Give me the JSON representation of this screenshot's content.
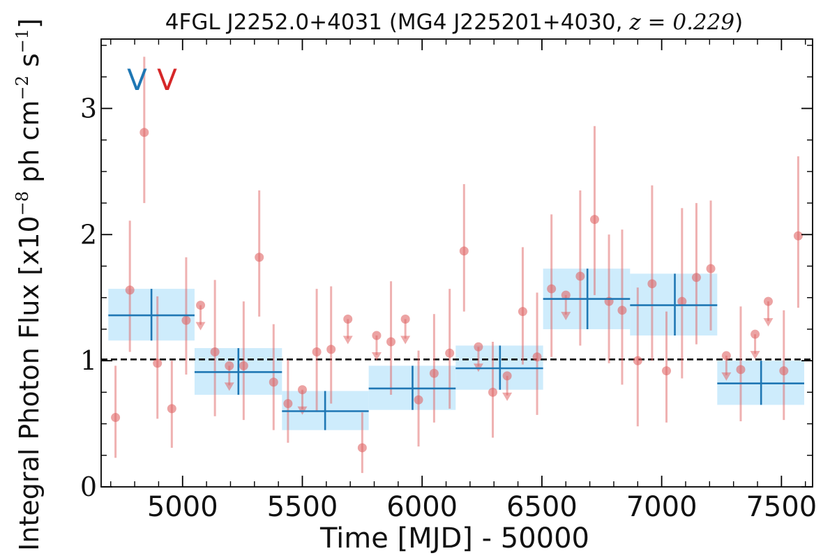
{
  "chart_data": {
    "type": "scatter",
    "title_main": "4FGL J2252.0+4031 (MG4 J225201+4030, ",
    "title_z": "z = 0.229",
    "title_end": ")",
    "xlabel": "Time [MJD] - 50000",
    "ylabel": "Integral Photon Flux [x10",
    "ylabel_exp": "−8",
    "ylabel_mid": " ph cm",
    "ylabel_exp2": "−2",
    "ylabel_end": " s",
    "ylabel_exp3": "−1",
    "ylabel_close": "]",
    "xlim": [
      4660,
      7630
    ],
    "ylim": [
      0,
      3.55
    ],
    "x_ticks": [
      5000,
      5500,
      6000,
      6500,
      7000,
      7500
    ],
    "y_ticks": [
      0,
      1,
      2,
      3
    ],
    "x_tick_labels": [
      "5000",
      "5500",
      "6000",
      "6500",
      "7000",
      "7500"
    ],
    "y_tick_labels": [
      "0",
      "1",
      "2",
      "3"
    ],
    "reference_line": 1.01,
    "markers": [
      {
        "text": "V",
        "x": 4810,
        "color": "#1f77b4"
      },
      {
        "text": "V",
        "x": 4935,
        "color": "#d62728"
      }
    ],
    "colors": {
      "monthly": "#e06666",
      "binned": "#1f77b4",
      "binned_band": "#c6e9fb"
    },
    "series": [
      {
        "kind": "binned",
        "points": [
          {
            "x": 4870,
            "x0": 4690,
            "x1": 5050,
            "y": 1.36,
            "ylo": 1.16,
            "yhi": 1.57
          },
          {
            "x": 5233,
            "x0": 5050,
            "x1": 5415,
            "y": 0.91,
            "ylo": 0.73,
            "yhi": 1.1
          },
          {
            "x": 5595,
            "x0": 5415,
            "x1": 5777,
            "y": 0.6,
            "ylo": 0.45,
            "yhi": 0.76
          },
          {
            "x": 5960,
            "x0": 5777,
            "x1": 6140,
            "y": 0.78,
            "ylo": 0.61,
            "yhi": 0.96
          },
          {
            "x": 6325,
            "x0": 6140,
            "x1": 6505,
            "y": 0.94,
            "ylo": 0.77,
            "yhi": 1.12
          },
          {
            "x": 6690,
            "x0": 6505,
            "x1": 6868,
            "y": 1.49,
            "ylo": 1.25,
            "yhi": 1.73
          },
          {
            "x": 7055,
            "x0": 6868,
            "x1": 7232,
            "y": 1.44,
            "ylo": 1.2,
            "yhi": 1.69
          },
          {
            "x": 7415,
            "x0": 7232,
            "x1": 7595,
            "y": 0.82,
            "ylo": 0.65,
            "yhi": 1.0
          }
        ]
      },
      {
        "kind": "monthly",
        "points": [
          {
            "x": 4720,
            "y": 0.55,
            "ylo": 0.23,
            "yhi": 0.96
          },
          {
            "x": 4780,
            "y": 1.56,
            "ylo": 1.07,
            "yhi": 2.11
          },
          {
            "x": 4840,
            "y": 2.81,
            "ylo": 2.25,
            "yhi": 3.41
          },
          {
            "x": 4895,
            "y": 0.98,
            "ylo": 0.54,
            "yhi": 1.51
          },
          {
            "x": 4955,
            "y": 0.62,
            "ylo": 0.31,
            "yhi": 1.0
          },
          {
            "x": 5015,
            "y": 1.32,
            "ylo": 0.89,
            "yhi": 1.82
          },
          {
            "x": 5075,
            "y": 1.44,
            "ul": true
          },
          {
            "x": 5135,
            "y": 1.07,
            "ylo": 0.56,
            "yhi": 1.64
          },
          {
            "x": 5195,
            "y": 0.96,
            "ul": true
          },
          {
            "x": 5255,
            "y": 0.96,
            "ylo": 0.53,
            "yhi": 1.47
          },
          {
            "x": 5320,
            "y": 1.82,
            "ylo": 1.35,
            "yhi": 2.35
          },
          {
            "x": 5380,
            "y": 0.83,
            "ylo": 0.45,
            "yhi": 1.29
          },
          {
            "x": 5440,
            "y": 0.66,
            "ylo": 0.35,
            "yhi": 1.01
          },
          {
            "x": 5500,
            "y": 0.77,
            "ul": true
          },
          {
            "x": 5560,
            "y": 1.07,
            "ylo": 0.6,
            "yhi": 1.57
          },
          {
            "x": 5620,
            "y": 1.09,
            "ylo": 0.66,
            "yhi": 1.59
          },
          {
            "x": 5690,
            "y": 1.33,
            "ul": true
          },
          {
            "x": 5750,
            "y": 0.31,
            "ylo": 0.11,
            "yhi": 0.59
          },
          {
            "x": 5810,
            "y": 1.2,
            "ul": true
          },
          {
            "x": 5870,
            "y": 1.15,
            "ylo": 0.73,
            "yhi": 1.63
          },
          {
            "x": 5930,
            "y": 1.33,
            "ul": true
          },
          {
            "x": 5985,
            "y": 0.69,
            "ylo": 0.32,
            "yhi": 1.08
          },
          {
            "x": 6050,
            "y": 0.9,
            "ylo": 0.51,
            "yhi": 1.37
          },
          {
            "x": 6115,
            "y": 1.06,
            "ylo": 0.62,
            "yhi": 1.57
          },
          {
            "x": 6175,
            "y": 1.87,
            "ylo": 1.39,
            "yhi": 2.4
          },
          {
            "x": 6235,
            "y": 1.11,
            "ul": true
          },
          {
            "x": 6295,
            "y": 0.75,
            "ylo": 0.39,
            "yhi": 1.15
          },
          {
            "x": 6355,
            "y": 0.88,
            "ul": true
          },
          {
            "x": 6420,
            "y": 1.39,
            "ylo": 0.97,
            "yhi": 1.9
          },
          {
            "x": 6480,
            "y": 1.03,
            "ylo": 0.57,
            "yhi": 1.54
          },
          {
            "x": 6540,
            "y": 1.57,
            "ylo": 1.03,
            "yhi": 2.16
          },
          {
            "x": 6600,
            "y": 1.52,
            "ul": true
          },
          {
            "x": 6660,
            "y": 1.67,
            "ylo": 1.12,
            "yhi": 2.35
          },
          {
            "x": 6720,
            "y": 2.12,
            "ylo": 1.52,
            "yhi": 2.86
          },
          {
            "x": 6780,
            "y": 1.47,
            "ylo": 0.98,
            "yhi": 2.0
          },
          {
            "x": 6835,
            "y": 1.4,
            "ylo": 0.81,
            "yhi": 2.04
          },
          {
            "x": 6900,
            "y": 1.0,
            "ylo": 0.48,
            "yhi": 1.58
          },
          {
            "x": 6960,
            "y": 1.61,
            "ylo": 1.0,
            "yhi": 2.39
          },
          {
            "x": 7020,
            "y": 0.92,
            "ylo": 0.51,
            "yhi": 1.39
          },
          {
            "x": 7085,
            "y": 1.47,
            "ylo": 0.86,
            "yhi": 2.21
          },
          {
            "x": 7145,
            "y": 1.66,
            "ylo": 1.13,
            "yhi": 2.25
          },
          {
            "x": 7205,
            "y": 1.73,
            "ylo": 1.24,
            "yhi": 2.27
          },
          {
            "x": 7270,
            "y": 1.04,
            "ul": true
          },
          {
            "x": 7330,
            "y": 0.93,
            "ylo": 0.52,
            "yhi": 1.43
          },
          {
            "x": 7390,
            "y": 1.21,
            "ul": true
          },
          {
            "x": 7445,
            "y": 1.47,
            "ul": true
          },
          {
            "x": 7510,
            "y": 0.92,
            "ylo": 0.53,
            "yhi": 1.4
          },
          {
            "x": 7570,
            "y": 1.99,
            "ylo": 1.42,
            "yhi": 2.62
          }
        ]
      }
    ]
  }
}
